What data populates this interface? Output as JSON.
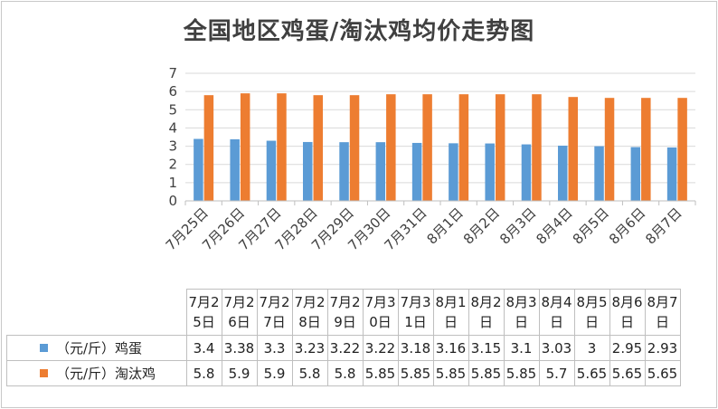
{
  "chart_data": {
    "type": "bar",
    "title": "全国地区鸡蛋/淘汰鸡均价走势图",
    "categories": [
      "7月25日",
      "7月26日",
      "7月27日",
      "7月28日",
      "7月29日",
      "7月30日",
      "7月31日",
      "8月1日",
      "8月2日",
      "8月3日",
      "8月4日",
      "8月5日",
      "8月6日",
      "8月7日"
    ],
    "table_headers": [
      "7月2\n5日",
      "7月2\n6日",
      "7月2\n7日",
      "7月2\n8日",
      "7月2\n9日",
      "7月3\n0日",
      "7月3\n1日",
      "8月1\n日",
      "8月2\n日",
      "8月3\n日",
      "8月4\n日",
      "8月5\n日",
      "8月6\n日",
      "8月7\n日"
    ],
    "series": [
      {
        "name": "（元/斤）鸡蛋",
        "color": "#5b9bd5",
        "values": [
          3.4,
          3.38,
          3.3,
          3.23,
          3.22,
          3.22,
          3.18,
          3.16,
          3.15,
          3.1,
          3.03,
          3,
          2.95,
          2.93
        ]
      },
      {
        "name": "（元/斤）淘汰鸡",
        "color": "#ed7d31",
        "values": [
          5.8,
          5.9,
          5.9,
          5.8,
          5.8,
          5.85,
          5.85,
          5.85,
          5.85,
          5.85,
          5.7,
          5.65,
          5.65,
          5.65
        ]
      }
    ],
    "ylim": [
      0,
      7
    ],
    "yticks": [
      0,
      1,
      2,
      3,
      4,
      5,
      6,
      7
    ],
    "grid": true,
    "legend": "table"
  }
}
